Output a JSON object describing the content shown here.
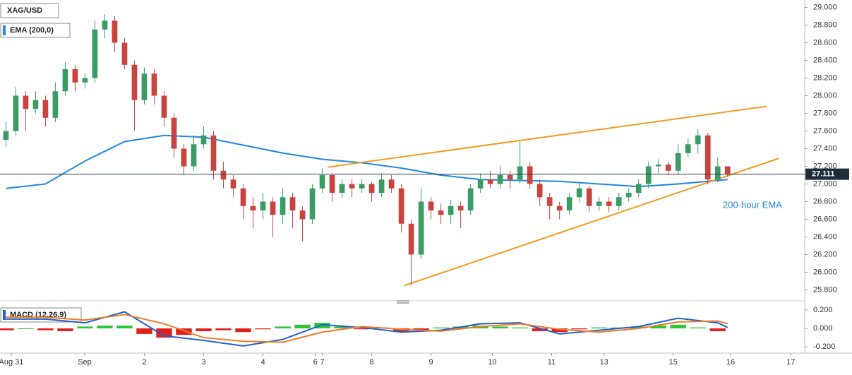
{
  "chart_data": [
    {
      "type": "candlestick",
      "title": "XAG/USD",
      "x": [
        0,
        1,
        2,
        3,
        4,
        5,
        6,
        7,
        8,
        9,
        10,
        11,
        12,
        13,
        14,
        15,
        16,
        17,
        18,
        19,
        20,
        21,
        22,
        23,
        24,
        25,
        26,
        27,
        28,
        29,
        30,
        31,
        32,
        33,
        34,
        35,
        36,
        37,
        38,
        39,
        40,
        41,
        42,
        43,
        44,
        45,
        46,
        47,
        48,
        49,
        50,
        51,
        52,
        53,
        54,
        55,
        56,
        57,
        58,
        59,
        60,
        61,
        62,
        63,
        64,
        65,
        66,
        67,
        68,
        69,
        70,
        71,
        72,
        73
      ],
      "open": [
        27.5,
        27.6,
        28.0,
        27.85,
        27.95,
        27.75,
        28.05,
        28.3,
        28.15,
        28.2,
        28.75,
        28.85,
        28.6,
        28.35,
        27.95,
        28.25,
        28.0,
        27.75,
        27.4,
        27.2,
        27.45,
        27.55,
        27.15,
        27.05,
        26.95,
        26.75,
        26.7,
        26.8,
        26.65,
        26.85,
        26.7,
        26.6,
        26.95,
        27.1,
        26.9,
        27.0,
        26.95,
        27.0,
        26.9,
        27.05,
        26.95,
        26.55,
        26.2,
        26.8,
        26.7,
        26.65,
        26.75,
        26.7,
        26.95,
        27.05,
        27.0,
        27.1,
        27.05,
        27.2,
        27.0,
        26.85,
        26.75,
        26.7,
        26.85,
        26.95,
        26.75,
        26.8,
        26.75,
        26.85,
        26.9,
        27.0,
        27.2,
        27.22,
        27.15,
        27.35,
        27.45,
        27.55,
        27.05,
        27.2
      ],
      "high": [
        27.7,
        28.1,
        28.05,
        28.05,
        28.0,
        28.15,
        28.38,
        28.35,
        28.25,
        28.85,
        28.92,
        28.9,
        28.65,
        28.4,
        28.32,
        28.3,
        28.05,
        27.8,
        27.45,
        27.55,
        27.65,
        27.6,
        27.25,
        27.1,
        27.0,
        26.85,
        26.9,
        26.85,
        26.95,
        26.9,
        26.75,
        27.0,
        27.18,
        27.12,
        27.05,
        27.05,
        27.05,
        27.02,
        27.12,
        27.1,
        27.0,
        26.6,
        26.95,
        26.85,
        26.78,
        26.82,
        26.8,
        27.0,
        27.12,
        27.15,
        27.2,
        27.15,
        27.48,
        27.25,
        27.05,
        26.9,
        26.8,
        26.9,
        27.02,
        26.98,
        26.85,
        26.85,
        26.9,
        26.95,
        27.05,
        27.25,
        27.28,
        27.25,
        27.45,
        27.52,
        27.62,
        27.58,
        27.3,
        27.2
      ],
      "low": [
        27.42,
        27.55,
        27.6,
        27.8,
        27.65,
        27.7,
        28.0,
        28.05,
        28.08,
        28.15,
        28.65,
        28.5,
        28.3,
        27.6,
        27.9,
        27.9,
        27.65,
        27.3,
        27.1,
        27.15,
        27.4,
        27.05,
        26.95,
        26.85,
        26.6,
        26.5,
        26.6,
        26.4,
        26.55,
        26.5,
        26.35,
        26.55,
        26.9,
        26.8,
        26.85,
        26.85,
        26.9,
        26.8,
        26.85,
        26.9,
        26.45,
        25.85,
        26.15,
        26.6,
        26.55,
        26.55,
        26.5,
        26.65,
        26.9,
        26.95,
        26.95,
        26.95,
        27.0,
        26.95,
        26.75,
        26.6,
        26.6,
        26.65,
        26.8,
        26.68,
        26.7,
        26.68,
        26.7,
        26.8,
        26.85,
        26.95,
        27.12,
        27.1,
        27.1,
        27.3,
        27.35,
        27.0,
        27.02,
        27.08
      ],
      "close": [
        27.6,
        28.0,
        27.85,
        27.95,
        27.75,
        28.05,
        28.3,
        28.15,
        28.2,
        28.75,
        28.85,
        28.6,
        28.35,
        27.95,
        28.25,
        28.0,
        27.75,
        27.4,
        27.2,
        27.45,
        27.55,
        27.15,
        27.05,
        26.95,
        26.75,
        26.7,
        26.8,
        26.65,
        26.85,
        26.7,
        26.6,
        26.95,
        27.1,
        26.9,
        27.0,
        26.95,
        27.0,
        26.9,
        27.05,
        26.95,
        26.55,
        26.2,
        26.8,
        26.7,
        26.65,
        26.75,
        26.7,
        26.95,
        27.05,
        27.0,
        27.1,
        27.05,
        27.2,
        27.0,
        26.85,
        26.75,
        26.7,
        26.85,
        26.95,
        26.75,
        26.8,
        26.75,
        26.85,
        26.9,
        27.0,
        27.2,
        27.22,
        27.15,
        27.35,
        27.45,
        27.55,
        27.05,
        27.2,
        27.11
      ],
      "up_color": "#3a9c64",
      "down_color": "#c9433f",
      "xlim": [
        -0.6,
        80.8
      ],
      "ylim": [
        25.7,
        29.06
      ],
      "yticks": [
        {
          "value": 29,
          "label": "29.000"
        },
        {
          "value": 28.8,
          "label": "28.800"
        },
        {
          "value": 28.6,
          "label": "28.600"
        },
        {
          "value": 28.4,
          "label": "28.400"
        },
        {
          "value": 28.2,
          "label": "28.200"
        },
        {
          "value": 28,
          "label": "28.000"
        },
        {
          "value": 27.8,
          "label": "27.800"
        },
        {
          "value": 27.6,
          "label": "27.600"
        },
        {
          "value": 27.4,
          "label": "27.400"
        },
        {
          "value": 27.2,
          "label": "27.200"
        },
        {
          "value": 27,
          "label": "27.000"
        },
        {
          "value": 26.8,
          "label": "26.800"
        },
        {
          "value": 26.6,
          "label": "26.600"
        },
        {
          "value": 26.4,
          "label": "26.400"
        },
        {
          "value": 26.2,
          "label": "26.200"
        },
        {
          "value": 26,
          "label": "26.000"
        },
        {
          "value": 25.8,
          "label": "25.800"
        }
      ],
      "xticks": [
        {
          "value": 0.54,
          "label": "Aug 31"
        },
        {
          "value": 7.97,
          "label": "Sep"
        },
        {
          "value": 14,
          "label": "2"
        },
        {
          "value": 20,
          "label": "3"
        },
        {
          "value": 26,
          "label": "4"
        },
        {
          "value": 31.3,
          "label": "6"
        },
        {
          "value": 32.0,
          "label": "7"
        },
        {
          "value": 37,
          "label": "8"
        },
        {
          "value": 43,
          "label": "9"
        },
        {
          "value": 49.2,
          "label": "10"
        },
        {
          "value": 55.2,
          "label": "11"
        },
        {
          "value": 60.5,
          "label": "13"
        },
        {
          "value": 67.5,
          "label": "15"
        },
        {
          "value": 73.3,
          "label": "16"
        },
        {
          "value": 79.4,
          "label": "17"
        }
      ],
      "ema": {
        "name": "EMA (200,0)",
        "color": "#1e88e5",
        "x": [
          0,
          4,
          8,
          12,
          16,
          20,
          24,
          28,
          32,
          36,
          40,
          44,
          48,
          52,
          56,
          60,
          64,
          68,
          72,
          73
        ],
        "values": [
          26.95,
          27.0,
          27.26,
          27.48,
          27.55,
          27.53,
          27.44,
          27.35,
          27.28,
          27.24,
          27.18,
          27.1,
          27.05,
          27.04,
          27.03,
          27.0,
          26.97,
          27.0,
          27.04,
          27.05
        ]
      },
      "trendlines": [
        {
          "color": "#f39c1f",
          "x": [
            32.54,
            76.97
          ],
          "values": [
            27.19,
            27.88
          ]
        },
        {
          "color": "#f39c1f",
          "x": [
            40.33,
            78.19
          ],
          "values": [
            25.85,
            27.29
          ]
        }
      ],
      "annotation": "200-hour EMA",
      "last_price": 27.111
    },
    {
      "type": "macd",
      "title": "MACD (12,26,9)",
      "xlim": [
        -0.6,
        80.8
      ],
      "ylim": [
        -0.26,
        0.26
      ],
      "yticks": [
        {
          "value": 0.2,
          "label": "0.200"
        },
        {
          "value": 0,
          "label": "0.000"
        },
        {
          "value": -0.2,
          "label": "-0.200"
        }
      ],
      "macd": {
        "color": "#1e62d0",
        "x": [
          0,
          4,
          8,
          12,
          16,
          20,
          24,
          28,
          32,
          36,
          40,
          44,
          48,
          52,
          56,
          60,
          64,
          68,
          72,
          73
        ],
        "values": [
          0.1,
          0.1,
          0.06,
          0.18,
          -0.08,
          -0.13,
          -0.19,
          -0.12,
          0.04,
          0.01,
          -0.04,
          -0.02,
          0.05,
          0.06,
          -0.06,
          -0.02,
          0.02,
          0.11,
          0.06,
          0.01
        ]
      },
      "signal": {
        "color": "#f07b22",
        "x": [
          0,
          4,
          8,
          12,
          16,
          20,
          24,
          28,
          32,
          36,
          40,
          44,
          48,
          52,
          56,
          60,
          64,
          68,
          72,
          73
        ],
        "values": [
          0.12,
          0.12,
          0.09,
          0.15,
          0.05,
          -0.1,
          -0.14,
          -0.15,
          -0.04,
          0.02,
          -0.01,
          -0.03,
          0.02,
          0.05,
          -0.01,
          -0.04,
          0.0,
          0.07,
          0.08,
          0.05
        ]
      },
      "histogram": {
        "up_color": "#2fc43a",
        "down_color": "#e0201b",
        "x": [
          0,
          2,
          4,
          6,
          8,
          10,
          12,
          14,
          16,
          18,
          20,
          22,
          24,
          26,
          28,
          30,
          32,
          34,
          36,
          38,
          40,
          42,
          44,
          46,
          48,
          50,
          52,
          54,
          56,
          58,
          60,
          62,
          64,
          66,
          68,
          70,
          72
        ],
        "values": [
          -0.02,
          0.0,
          -0.02,
          -0.03,
          0.02,
          0.03,
          0.03,
          -0.06,
          -0.1,
          -0.07,
          -0.03,
          -0.02,
          -0.04,
          -0.01,
          0.02,
          0.04,
          0.06,
          0.02,
          -0.01,
          0.01,
          -0.04,
          -0.02,
          0.01,
          0.02,
          0.03,
          0.02,
          0.01,
          -0.03,
          -0.04,
          -0.01,
          0.01,
          0.01,
          0.02,
          0.03,
          0.04,
          0.01,
          -0.03
        ]
      }
    }
  ]
}
